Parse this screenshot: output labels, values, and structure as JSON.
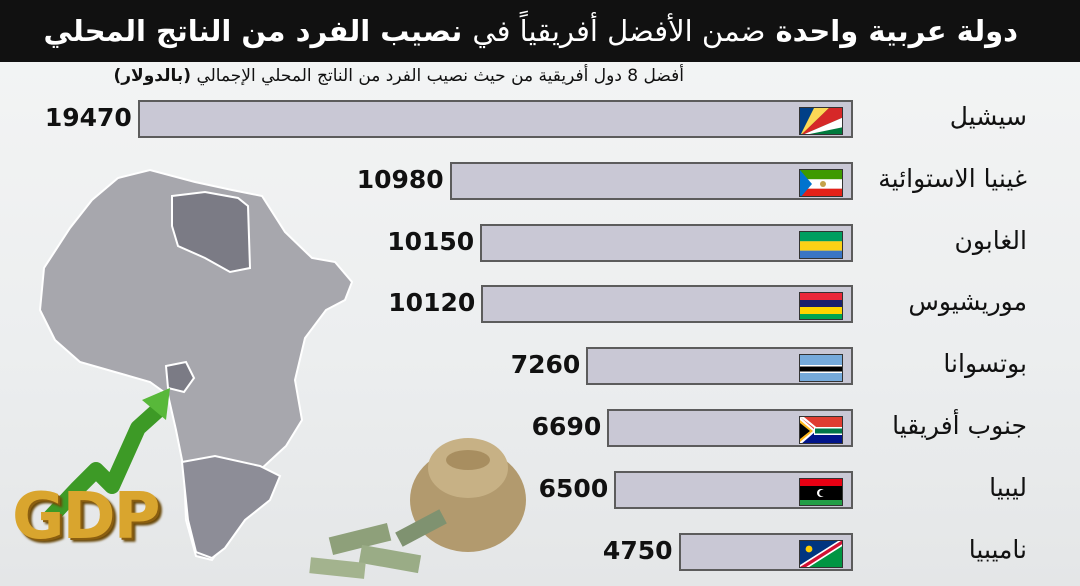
{
  "header": {
    "title_part1": "دولة عربية واحدة",
    "title_part2": "ضمن الأفضل أفريقياً في",
    "title_part3": "نصيب الفرد من الناتج المحلي"
  },
  "subtitle": {
    "main": "أفضل 8 دول أفريقية من حيث نصيب الفرد من الناتج المحلي الإجمالي",
    "unit": "(بالدولار)"
  },
  "decor": {
    "gdp_label": "GDP"
  },
  "colors": {
    "bar_fill": "#c9c8d5",
    "bar_border": "#5c5c5c",
    "header_bg": "#111111",
    "map_fill": "#a7a7ad",
    "map_highlight": "#7b7b85"
  },
  "chart_data": {
    "type": "bar",
    "orientation": "horizontal",
    "title": "دولة عربية واحدة ضمن الأفضل أفريقياً في نصيب الفرد من الناتج المحلي",
    "subtitle": "أفضل 8 دول أفريقية من حيث نصيب الفرد من الناتج المحلي الإجمالي (بالدولار)",
    "categories": [
      "سيشيل",
      "غينيا الاستوائية",
      "الغابون",
      "موريشيوس",
      "بوتسوانا",
      "جنوب أفريقيا",
      "ليبيا",
      "ناميبيا"
    ],
    "values": [
      19470,
      10980,
      10150,
      10120,
      7260,
      6690,
      6500,
      4750
    ],
    "value_labels": [
      "19470",
      "10980",
      "10150",
      "10120",
      "7260",
      "6690",
      "6500",
      "4750"
    ],
    "flags": [
      "seychelles-flag-icon",
      "equatorial-guinea-flag-icon",
      "gabon-flag-icon",
      "mauritius-flag-icon",
      "botswana-flag-icon",
      "south-africa-flag-icon",
      "libya-flag-icon",
      "namibia-flag-icon"
    ],
    "grid": false
  }
}
